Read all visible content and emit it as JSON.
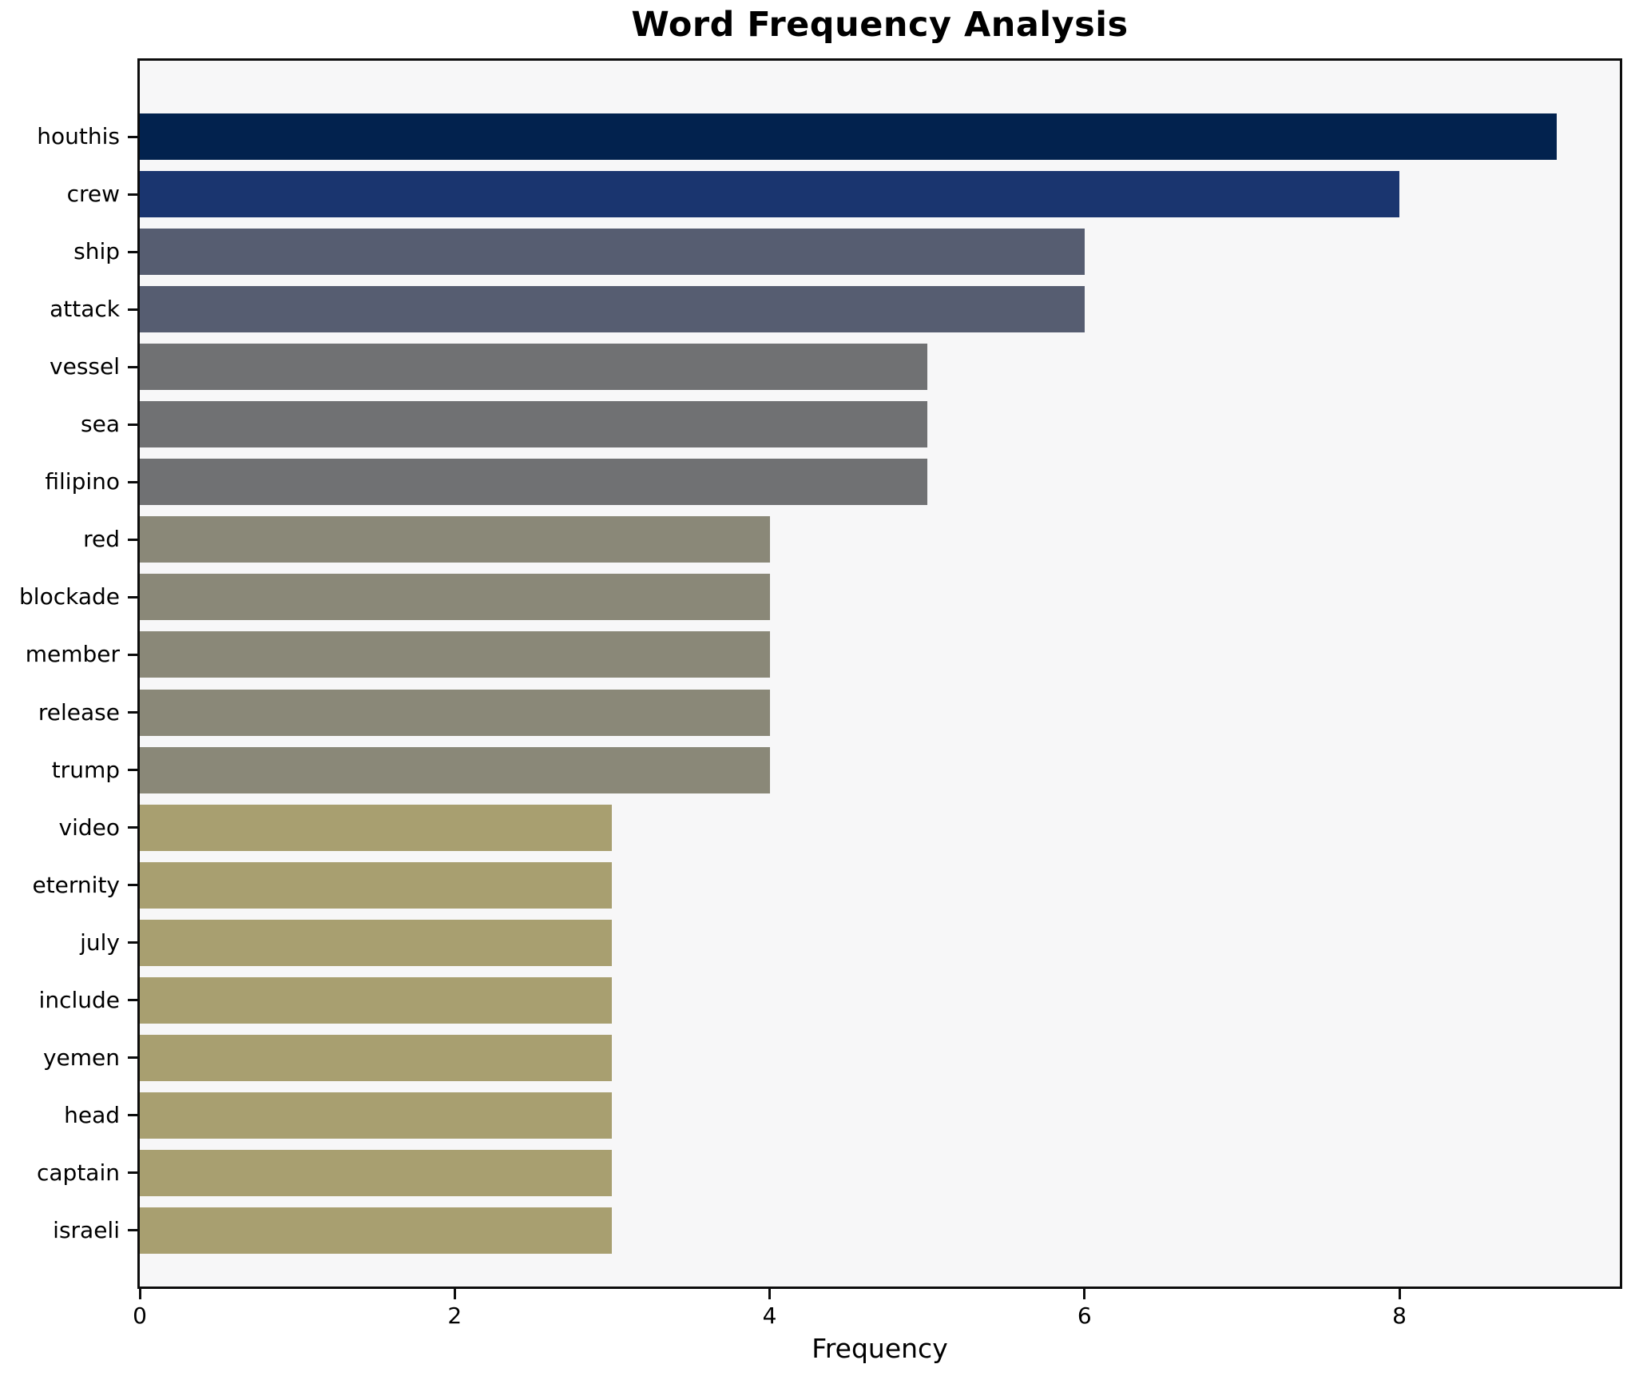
{
  "chart_data": {
    "type": "bar",
    "orientation": "horizontal",
    "title": "Word Frequency Analysis",
    "xlabel": "Frequency",
    "ylabel": "",
    "categories": [
      "houthis",
      "crew",
      "ship",
      "attack",
      "vessel",
      "sea",
      "filipino",
      "red",
      "blockade",
      "member",
      "release",
      "trump",
      "video",
      "eternity",
      "july",
      "include",
      "yemen",
      "head",
      "captain",
      "israeli"
    ],
    "values": [
      9,
      8,
      6,
      6,
      5,
      5,
      5,
      4,
      4,
      4,
      4,
      4,
      3,
      3,
      3,
      3,
      3,
      3,
      3,
      3
    ],
    "bar_colors": [
      "#02224e",
      "#1a356f",
      "#565d71",
      "#565d71",
      "#707173",
      "#707173",
      "#707173",
      "#8a8878",
      "#8a8878",
      "#8a8878",
      "#8a8878",
      "#8a8878",
      "#a89f70",
      "#a89f70",
      "#a89f70",
      "#a89f70",
      "#a89f70",
      "#a89f70",
      "#a89f70",
      "#a89f70"
    ],
    "xticks": [
      0,
      2,
      4,
      6,
      8
    ],
    "xlim": [
      0,
      9.4
    ],
    "grid": false,
    "legend_position": "none",
    "plot_bg": "#f7f7f8",
    "figure_bg": "#ffffff",
    "spine_color": "#0d0d0d"
  }
}
